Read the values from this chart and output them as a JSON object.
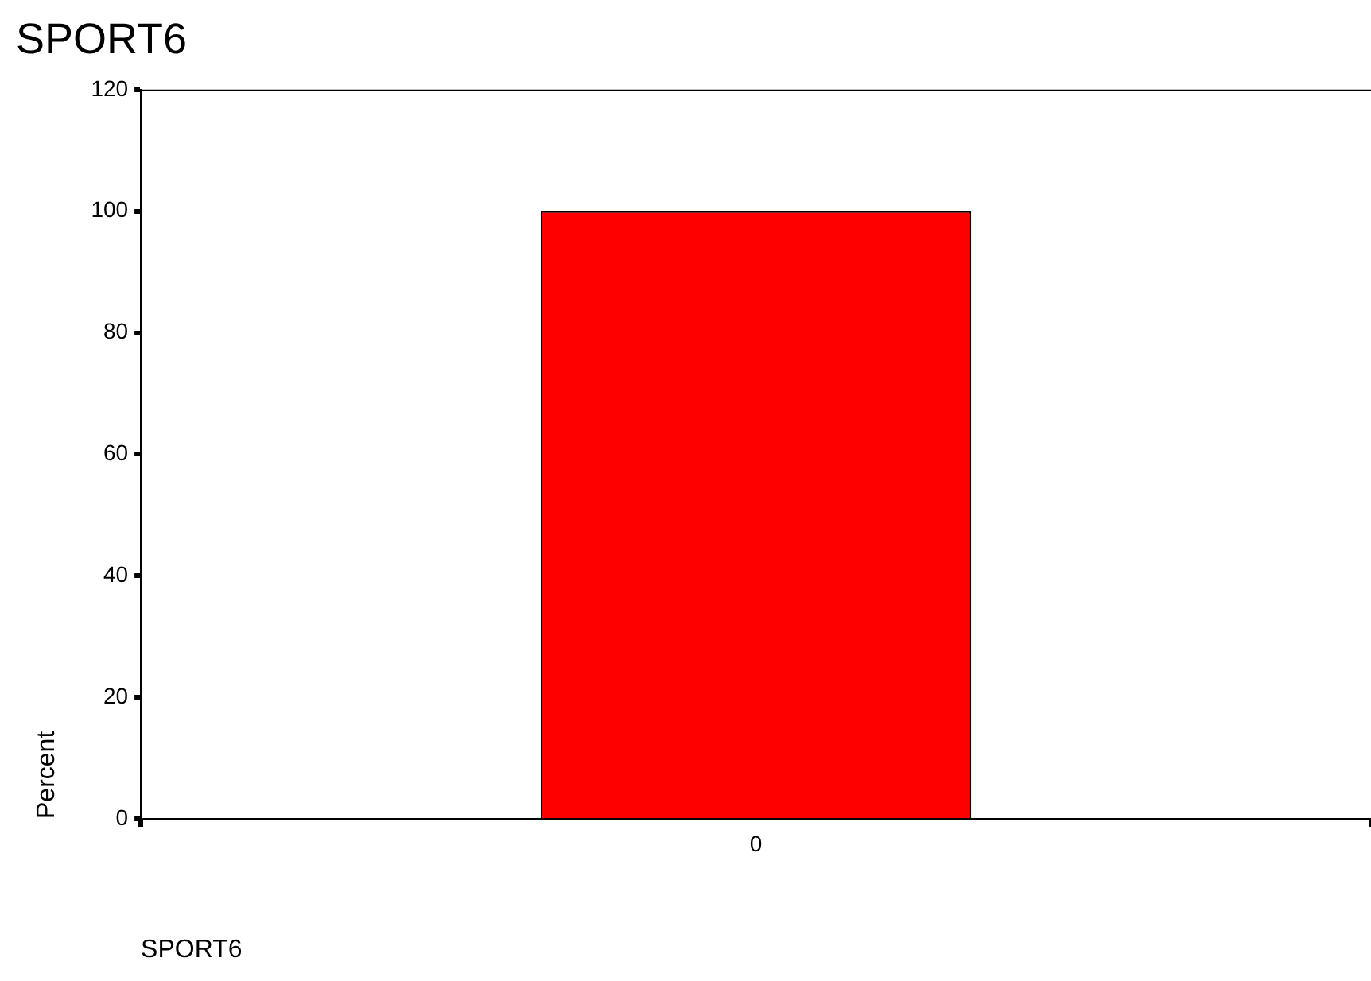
{
  "chart_data": {
    "type": "bar",
    "title": "SPORT6",
    "xlabel": "SPORT6",
    "ylabel": "Percent",
    "categories": [
      "0"
    ],
    "values": [
      100
    ],
    "color": "#ff0000",
    "ylim": [
      0,
      120
    ],
    "yticks": [
      0,
      20,
      40,
      60,
      80,
      100,
      120
    ],
    "grid": false
  }
}
